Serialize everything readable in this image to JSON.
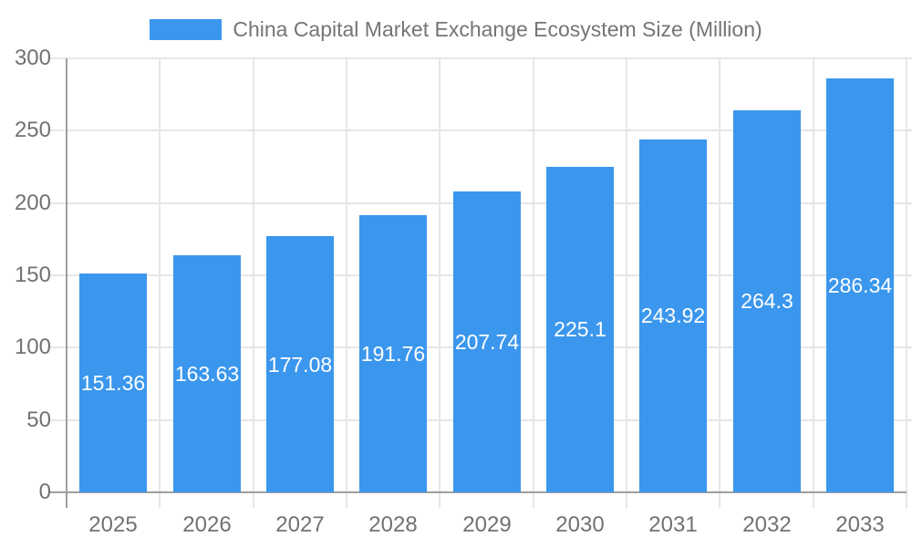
{
  "chart_data": {
    "type": "bar",
    "title": "China Capital Market Exchange Ecosystem Size (Million)",
    "categories": [
      "2025",
      "2026",
      "2027",
      "2028",
      "2029",
      "2030",
      "2031",
      "2032",
      "2033"
    ],
    "values": [
      151.36,
      163.63,
      177.08,
      191.76,
      207.74,
      225.1,
      243.92,
      264.3,
      286.34
    ],
    "xlabel": "",
    "ylabel": "",
    "ylim": [
      0,
      300
    ],
    "yticks": [
      0,
      50,
      100,
      150,
      200,
      250,
      300
    ],
    "grid": true,
    "legend_position": "top",
    "value_labels_inside_bars": true,
    "colors": {
      "bar": "#3b97ed",
      "grid": "#e6e6e6",
      "axis": "#9e9e9e",
      "tick_text": "#727272",
      "legend_text": "#757575",
      "value_text": "#ffffff",
      "background": "#ffffff"
    }
  }
}
